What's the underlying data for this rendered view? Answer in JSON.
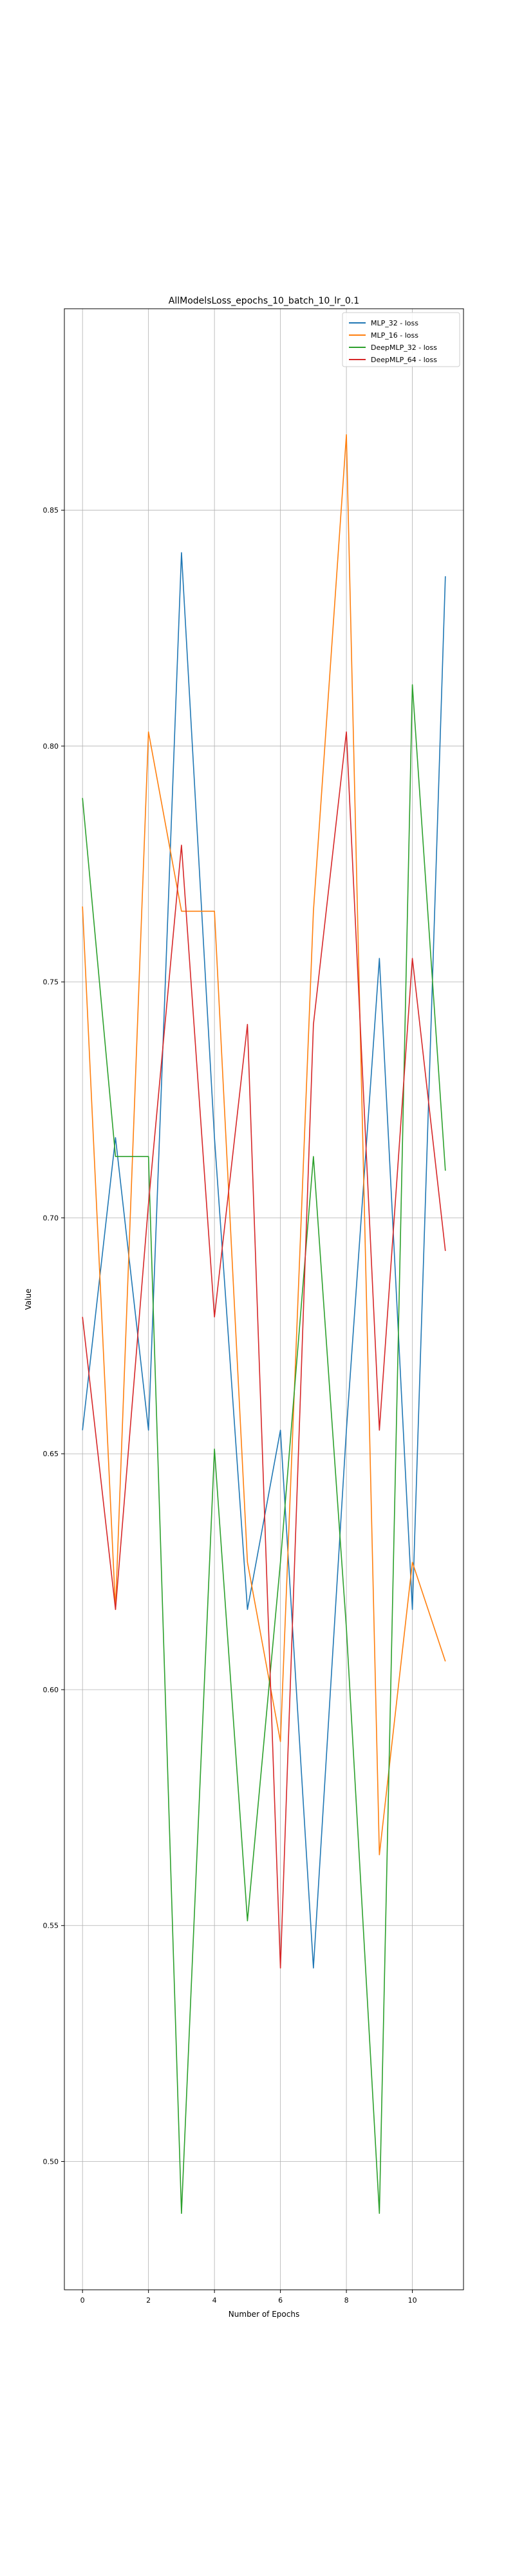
{
  "chart_data": {
    "type": "line",
    "title": "AllModelsLoss_epochs_10_batch_10_lr_0.1",
    "xlabel": "Number of Epochs",
    "ylabel": "Value",
    "xlim": [
      -0.55,
      11.55
    ],
    "ylim": [
      0.4728,
      0.8927
    ],
    "x": [
      0,
      1,
      2,
      3,
      4,
      5,
      6,
      7,
      8,
      9,
      10,
      11
    ],
    "xticks": [
      0,
      2,
      4,
      6,
      8,
      10
    ],
    "yticks": [
      0.5,
      0.55,
      0.6,
      0.65,
      0.7,
      0.75,
      0.8,
      0.85
    ],
    "ytick_labels": [
      "0.50",
      "0.55",
      "0.60",
      "0.65",
      "0.70",
      "0.75",
      "0.80",
      "0.85"
    ],
    "grid": true,
    "legend_position": "top-right",
    "series": [
      {
        "name": "MLP_32 - loss",
        "color": "#1f77b4",
        "values": [
          0.655,
          0.717,
          0.655,
          0.841,
          0.717,
          0.617,
          0.655,
          0.541,
          0.655,
          0.755,
          0.617,
          0.836
        ]
      },
      {
        "name": "MLP_16 - loss",
        "color": "#ff7f0e",
        "values": [
          0.766,
          0.617,
          0.803,
          0.765,
          0.765,
          0.627,
          0.589,
          0.765,
          0.866,
          0.565,
          0.627,
          0.606
        ]
      },
      {
        "name": "DeepMLP_32 - loss",
        "color": "#2ca02c",
        "values": [
          0.789,
          0.713,
          0.713,
          0.489,
          0.651,
          0.551,
          0.627,
          0.713,
          0.613,
          0.489,
          0.813,
          0.71
        ]
      },
      {
        "name": "DeepMLP_64 - loss",
        "color": "#d62728",
        "values": [
          0.679,
          0.617,
          0.703,
          0.779,
          0.679,
          0.741,
          0.541,
          0.741,
          0.803,
          0.655,
          0.755,
          0.693
        ]
      }
    ]
  }
}
